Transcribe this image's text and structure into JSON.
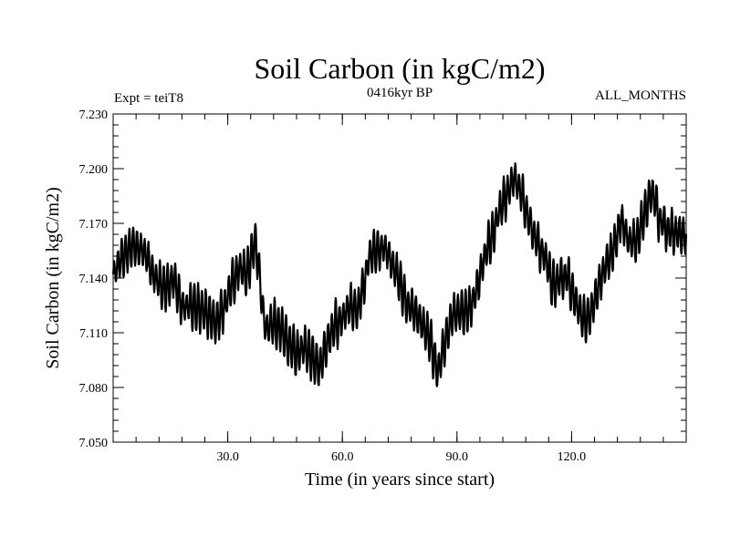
{
  "chart_data": {
    "type": "line",
    "title": "Soil Carbon (in kgC/m2)",
    "subtitle": "0416kyr BP",
    "left_label": "Expt = teiT8",
    "right_label": "ALL_MONTHS",
    "xlabel": "Time (in years since start)",
    "ylabel": "Soil Carbon (in kgC/m2)",
    "xlim": [
      0,
      150
    ],
    "ylim": [
      7.05,
      7.23
    ],
    "x_ticks": [
      30,
      60,
      90,
      120
    ],
    "x_tick_labels": [
      "30.0",
      "60.0",
      "90.0",
      "120.0"
    ],
    "y_ticks": [
      7.05,
      7.08,
      7.11,
      7.14,
      7.17,
      7.2,
      7.23
    ],
    "y_tick_labels": [
      "7.050",
      "7.080",
      "7.110",
      "7.140",
      "7.170",
      "7.200",
      "7.230"
    ],
    "grid": false,
    "series": [
      {
        "name": "Soil Carbon",
        "baseline": {
          "x": [
            0,
            2,
            5,
            8,
            11,
            13,
            16,
            18,
            21,
            24,
            27,
            29,
            31,
            33,
            35,
            37,
            38,
            39,
            40,
            42,
            44,
            46,
            48,
            50,
            52,
            54,
            56,
            58,
            60,
            62,
            64,
            66,
            67,
            69,
            71,
            73,
            75,
            77,
            79,
            81,
            83,
            85,
            87,
            89,
            91,
            93,
            95,
            97,
            99,
            101,
            103,
            105,
            107,
            109,
            111,
            113,
            115,
            117,
            119,
            121,
            123,
            125,
            127,
            129,
            131,
            133,
            135,
            137,
            139,
            141,
            143,
            145,
            147,
            150
          ],
          "y": [
            7.141,
            7.15,
            7.158,
            7.155,
            7.14,
            7.134,
            7.139,
            7.125,
            7.124,
            7.122,
            7.115,
            7.124,
            7.136,
            7.146,
            7.141,
            7.16,
            7.15,
            7.125,
            7.112,
            7.115,
            7.112,
            7.104,
            7.099,
            7.102,
            7.097,
            7.091,
            7.104,
            7.114,
            7.118,
            7.125,
            7.122,
            7.14,
            7.152,
            7.155,
            7.157,
            7.148,
            7.138,
            7.125,
            7.122,
            7.114,
            7.106,
            7.088,
            7.106,
            7.121,
            7.121,
            7.122,
            7.132,
            7.15,
            7.162,
            7.176,
            7.186,
            7.195,
            7.185,
            7.171,
            7.159,
            7.152,
            7.136,
            7.14,
            7.14,
            7.128,
            7.116,
            7.12,
            7.135,
            7.147,
            7.156,
            7.172,
            7.16,
            7.16,
            7.175,
            7.188,
            7.172,
            7.166,
            7.165,
            7.163
          ],
          "oscillation_amplitude": 0.012,
          "oscillation_period": 1,
          "oscillation_shape": "irregular annual cycle with varying amplitude"
        }
      }
    ]
  }
}
